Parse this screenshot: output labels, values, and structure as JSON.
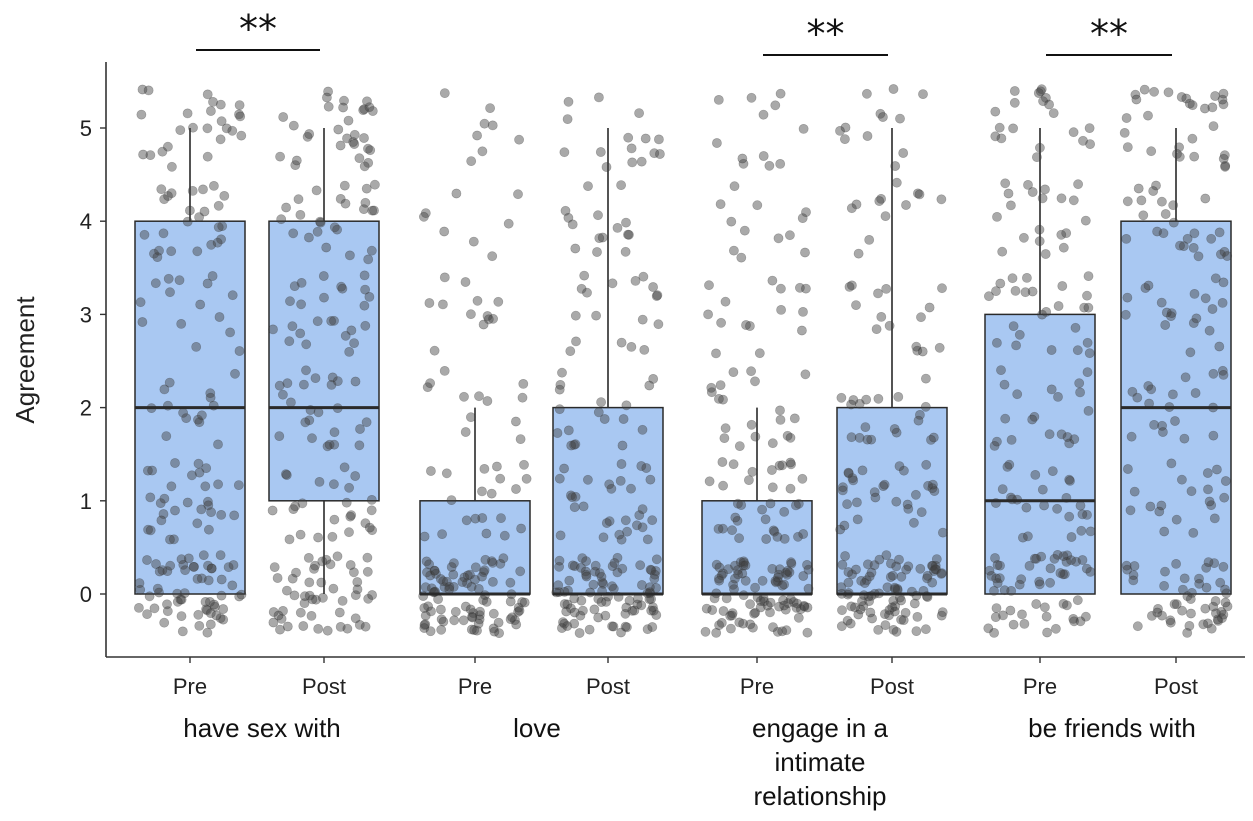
{
  "chart_data": {
    "type": "boxplot",
    "ylabel": "Agreement",
    "ylim": [
      -0.7,
      5.7
    ],
    "yticks": [
      0,
      1,
      2,
      3,
      4,
      5
    ],
    "groups": [
      {
        "label_lines": [
          "have sex with"
        ],
        "significance": "**",
        "boxes": [
          {
            "condition": "Pre",
            "q1": 0,
            "median": 2,
            "q3": 4,
            "whisker_low": 0,
            "whisker_high": 5
          },
          {
            "condition": "Post",
            "q1": 1,
            "median": 2,
            "q3": 4,
            "whisker_low": 0,
            "whisker_high": 5
          }
        ]
      },
      {
        "label_lines": [
          "love"
        ],
        "significance": "",
        "boxes": [
          {
            "condition": "Pre",
            "q1": 0,
            "median": 0,
            "q3": 1,
            "whisker_low": 0,
            "whisker_high": 2
          },
          {
            "condition": "Post",
            "q1": 0,
            "median": 0,
            "q3": 2,
            "whisker_low": 0,
            "whisker_high": 5
          }
        ]
      },
      {
        "label_lines": [
          "engage in a",
          "intimate",
          "relationship"
        ],
        "significance": "**",
        "boxes": [
          {
            "condition": "Pre",
            "q1": 0,
            "median": 0,
            "q3": 1,
            "whisker_low": 0,
            "whisker_high": 2
          },
          {
            "condition": "Post",
            "q1": 0,
            "median": 0,
            "q3": 2,
            "whisker_low": 0,
            "whisker_high": 5
          }
        ]
      },
      {
        "label_lines": [
          "be friends with"
        ],
        "significance": "**",
        "boxes": [
          {
            "condition": "Pre",
            "q1": 0,
            "median": 1,
            "q3": 3,
            "whisker_low": 0,
            "whisker_high": 5
          },
          {
            "condition": "Post",
            "q1": 0,
            "median": 2,
            "q3": 4,
            "whisker_low": 0,
            "whisker_high": 5
          }
        ]
      }
    ],
    "jitter_point_counts": [
      [
        60,
        30,
        15,
        15,
        25,
        25
      ],
      [
        50,
        25,
        25,
        25,
        25,
        30
      ],
      [
        90,
        20,
        12,
        12,
        8,
        8
      ],
      [
        90,
        30,
        18,
        18,
        15,
        15
      ],
      [
        90,
        35,
        20,
        15,
        12,
        12
      ],
      [
        90,
        30,
        20,
        15,
        12,
        12
      ],
      [
        55,
        25,
        20,
        25,
        20,
        20
      ],
      [
        50,
        20,
        20,
        20,
        25,
        30
      ]
    ],
    "colors": {
      "box_fill": "#a9c8f2",
      "box_edge": "#2a2a2a",
      "points": "#404040"
    },
    "grid": false
  }
}
